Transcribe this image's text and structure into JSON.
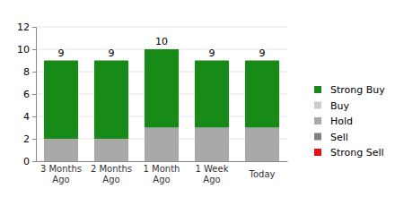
{
  "chart_data": {
    "type": "bar",
    "stacked": true,
    "grid": true,
    "legend": "right",
    "categories": [
      "3 Months Ago",
      "2 Months Ago",
      "1 Month Ago",
      "1 Week Ago",
      "Today"
    ],
    "series": [
      {
        "name": "Strong Buy",
        "color": "#178a17",
        "values": [
          7,
          7,
          7,
          6,
          6
        ]
      },
      {
        "name": "Buy",
        "color": "#cccccc",
        "values": [
          0,
          0,
          0,
          0,
          0
        ]
      },
      {
        "name": "Hold",
        "color": "#a9a9a9",
        "values": [
          2,
          2,
          3,
          3,
          3
        ]
      },
      {
        "name": "Sell",
        "color": "#808080",
        "values": [
          0,
          0,
          0,
          0,
          0
        ]
      },
      {
        "name": "Strong Sell",
        "color": "#e3121a",
        "values": [
          0,
          0,
          0,
          0,
          0
        ]
      }
    ],
    "totals": [
      9,
      9,
      10,
      9,
      9
    ],
    "ylim": [
      0,
      12
    ],
    "yticks": [
      0,
      2,
      4,
      6,
      8,
      10,
      12
    ]
  }
}
